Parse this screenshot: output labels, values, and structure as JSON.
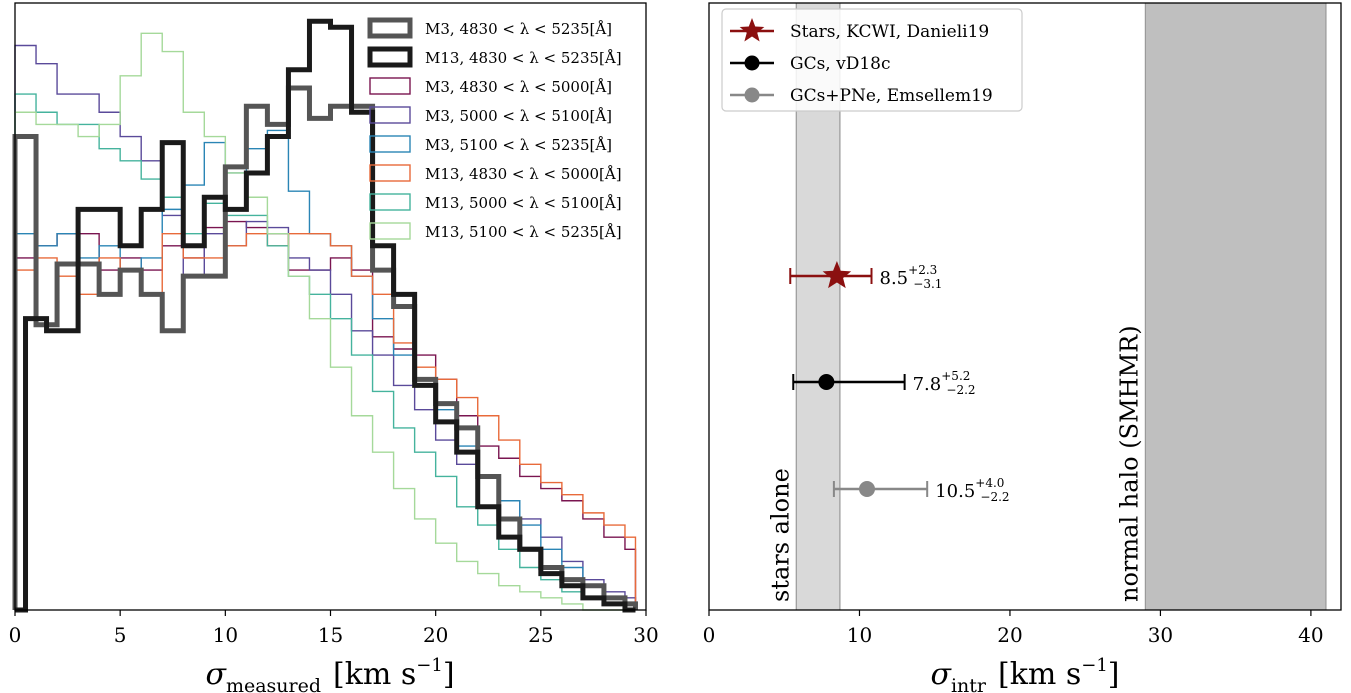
{
  "chart_data": [
    {
      "type": "histogram",
      "xlabel_main": "σ",
      "xlabel_sub": "measured",
      "xlabel_units": "[km s",
      "xlabel_exp": "−1",
      "xlabel_close": "]",
      "xlim": [
        0,
        30
      ],
      "xticks": [
        "0",
        "5",
        "10",
        "15",
        "20",
        "25",
        "30"
      ],
      "ylim": [
        0,
        1
      ],
      "yticks_visible": false,
      "legend_position": "top-right",
      "bin_width": 0.5,
      "x_start": 0,
      "series": [
        {
          "name": "M3, 4830 < λ < 5235[Å]",
          "color": "#555555",
          "weight": "thick",
          "values": [
            0.78,
            0.78,
            0.47,
            0.47,
            0.57,
            0.57,
            0.57,
            0.57,
            0.52,
            0.52,
            0.56,
            0.56,
            0.52,
            0.52,
            0.46,
            0.46,
            0.55,
            0.55,
            0.55,
            0.55,
            0.73,
            0.73,
            0.83,
            0.83,
            0.8,
            0.8,
            0.86,
            0.86,
            0.81,
            0.81,
            0.83,
            0.83,
            0.83,
            0.83,
            0.56,
            0.56,
            0.5,
            0.5,
            0.38,
            0.38,
            0.34,
            0.34,
            0.3,
            0.3,
            0.22,
            0.22,
            0.15,
            0.15,
            0.1,
            0.1,
            0.07,
            0.07,
            0.05,
            0.05,
            0.04,
            0.04,
            0.02,
            0.02,
            0.01
          ]
        },
        {
          "name": "M13, 4830 < λ < 5235[Å]",
          "color": "#1a1a1a",
          "weight": "thick",
          "values": [
            0.0,
            0.48,
            0.48,
            0.46,
            0.46,
            0.46,
            0.66,
            0.66,
            0.66,
            0.66,
            0.6,
            0.6,
            0.66,
            0.66,
            0.77,
            0.77,
            0.6,
            0.6,
            0.68,
            0.68,
            0.66,
            0.66,
            0.72,
            0.72,
            0.78,
            0.78,
            0.89,
            0.89,
            0.97,
            0.97,
            0.96,
            0.96,
            0.82,
            0.82,
            0.6,
            0.6,
            0.52,
            0.52,
            0.37,
            0.37,
            0.31,
            0.31,
            0.26,
            0.26,
            0.17,
            0.17,
            0.12,
            0.12,
            0.1,
            0.1,
            0.06,
            0.06,
            0.04,
            0.04,
            0.02,
            0.02,
            0.01,
            0.01,
            0.0
          ]
        },
        {
          "name": "M3, 4830 < λ < 5000[Å]",
          "color": "#7a1550",
          "weight": "thin",
          "values": [
            0.58,
            0.58,
            0.6,
            0.6,
            0.62,
            0.62,
            0.62,
            0.62,
            0.56,
            0.56,
            0.58,
            0.58,
            0.56,
            0.56,
            0.6,
            0.6,
            0.58,
            0.58,
            0.63,
            0.63,
            0.64,
            0.64,
            0.63,
            0.63,
            0.62,
            0.62,
            0.56,
            0.56,
            0.56,
            0.56,
            0.58,
            0.58,
            0.56,
            0.56,
            0.45,
            0.45,
            0.43,
            0.43,
            0.42,
            0.42,
            0.38,
            0.38,
            0.32,
            0.32,
            0.27,
            0.27,
            0.25,
            0.25,
            0.22,
            0.22,
            0.2,
            0.2,
            0.18,
            0.18,
            0.15,
            0.15,
            0.12,
            0.12,
            0.1
          ]
        },
        {
          "name": "M3, 5000 < λ < 5100[Å]",
          "color": "#5a4a9a",
          "weight": "thin",
          "values": [
            0.93,
            0.93,
            0.9,
            0.9,
            0.85,
            0.85,
            0.85,
            0.85,
            0.82,
            0.82,
            0.78,
            0.78,
            0.74,
            0.74,
            0.65,
            0.65,
            0.55,
            0.55,
            0.62,
            0.62,
            0.6,
            0.6,
            0.64,
            0.64,
            0.63,
            0.63,
            0.58,
            0.58,
            0.56,
            0.56,
            0.52,
            0.52,
            0.46,
            0.46,
            0.42,
            0.42,
            0.37,
            0.37,
            0.33,
            0.33,
            0.28,
            0.28,
            0.24,
            0.24,
            0.22,
            0.22,
            0.18,
            0.18,
            0.15,
            0.15,
            0.12,
            0.12,
            0.08,
            0.08,
            0.05,
            0.05,
            0.03,
            0.03,
            0.02
          ]
        },
        {
          "name": "M3, 5100 < λ < 5235[Å]",
          "color": "#2a85b5",
          "weight": "thin",
          "values": [
            0.62,
            0.62,
            0.6,
            0.6,
            0.62,
            0.62,
            0.58,
            0.58,
            0.6,
            0.6,
            0.56,
            0.56,
            0.58,
            0.58,
            0.66,
            0.66,
            0.7,
            0.7,
            0.77,
            0.77,
            0.72,
            0.72,
            0.76,
            0.76,
            0.79,
            0.79,
            0.69,
            0.69,
            0.62,
            0.62,
            0.6,
            0.6,
            0.55,
            0.55,
            0.48,
            0.48,
            0.42,
            0.42,
            0.37,
            0.37,
            0.33,
            0.33,
            0.27,
            0.27,
            0.22,
            0.22,
            0.18,
            0.18,
            0.14,
            0.14,
            0.1,
            0.1,
            0.07,
            0.07,
            0.04,
            0.04,
            0.02,
            0.02,
            0.01
          ]
        },
        {
          "name": "M13, 4830 < λ < 5000[Å]",
          "color": "#e86a3a",
          "weight": "thin",
          "values": [
            0.56,
            0.56,
            0.58,
            0.58,
            0.55,
            0.55,
            0.52,
            0.52,
            0.58,
            0.58,
            0.56,
            0.56,
            0.52,
            0.52,
            0.62,
            0.62,
            0.58,
            0.58,
            0.58,
            0.58,
            0.6,
            0.6,
            0.62,
            0.62,
            0.6,
            0.6,
            0.62,
            0.62,
            0.62,
            0.62,
            0.6,
            0.6,
            0.55,
            0.55,
            0.52,
            0.52,
            0.44,
            0.44,
            0.4,
            0.4,
            0.38,
            0.38,
            0.35,
            0.35,
            0.32,
            0.32,
            0.28,
            0.28,
            0.24,
            0.24,
            0.21,
            0.21,
            0.19,
            0.19,
            0.16,
            0.16,
            0.14,
            0.14,
            0.12
          ]
        },
        {
          "name": "M13, 5000 < λ < 5100[Å]",
          "color": "#45b39d",
          "weight": "thin",
          "values": [
            0.85,
            0.85,
            0.82,
            0.82,
            0.8,
            0.8,
            0.8,
            0.8,
            0.76,
            0.76,
            0.74,
            0.74,
            0.71,
            0.71,
            0.68,
            0.68,
            0.62,
            0.62,
            0.67,
            0.67,
            0.65,
            0.65,
            0.65,
            0.65,
            0.6,
            0.6,
            0.55,
            0.55,
            0.52,
            0.52,
            0.48,
            0.48,
            0.42,
            0.42,
            0.36,
            0.36,
            0.3,
            0.3,
            0.26,
            0.26,
            0.22,
            0.22,
            0.17,
            0.17,
            0.14,
            0.14,
            0.1,
            0.1,
            0.07,
            0.07,
            0.05,
            0.05,
            0.03,
            0.03,
            0.02,
            0.02,
            0.01,
            0.01,
            0.0
          ]
        },
        {
          "name": "M13, 5100 < λ < 5235[Å]",
          "color": "#a5d99a",
          "weight": "thin",
          "values": [
            0.82,
            0.82,
            0.8,
            0.8,
            0.8,
            0.8,
            0.78,
            0.78,
            0.8,
            0.8,
            0.88,
            0.88,
            0.95,
            0.95,
            0.92,
            0.92,
            0.82,
            0.82,
            0.78,
            0.78,
            0.72,
            0.72,
            0.68,
            0.68,
            0.62,
            0.62,
            0.55,
            0.55,
            0.48,
            0.48,
            0.4,
            0.4,
            0.32,
            0.32,
            0.26,
            0.26,
            0.2,
            0.2,
            0.15,
            0.15,
            0.11,
            0.11,
            0.08,
            0.08,
            0.06,
            0.06,
            0.04,
            0.04,
            0.03,
            0.03,
            0.02,
            0.02,
            0.01,
            0.01,
            0.0,
            0.0,
            0.0,
            0.0,
            0.0
          ]
        }
      ]
    },
    {
      "type": "errorbar",
      "xlabel_main": "σ",
      "xlabel_sub": "intr",
      "xlabel_units": "[km s",
      "xlabel_exp": "−1",
      "xlabel_close": "]",
      "xlim": [
        0,
        42
      ],
      "xticks": [
        "0",
        "10",
        "20",
        "30",
        "40"
      ],
      "yticks_visible": false,
      "legend_position": "top-left",
      "bands": [
        {
          "label": "stars alone",
          "x0": 5.8,
          "x1": 8.7,
          "color": "#d9d9d9"
        },
        {
          "label": "normal halo (SMHMR)",
          "x0": 29,
          "x1": 41,
          "color": "#bfbfbf"
        }
      ],
      "series": [
        {
          "name": "Stars, KCWI, Danieli19",
          "color": "#8b1010",
          "marker": "star",
          "x": 8.5,
          "err_plus": 2.3,
          "err_minus": 3.1,
          "value": "8.5",
          "plus": "+2.3",
          "minus": "−3.1",
          "row": 1
        },
        {
          "name": "GCs, vD18c",
          "color": "#000000",
          "marker": "circle",
          "x": 7.8,
          "err_plus": 5.2,
          "err_minus": 2.2,
          "value": "7.8",
          "plus": "+5.2",
          "minus": "−2.2",
          "row": 2
        },
        {
          "name": "GCs+PNe, Emsellem19",
          "color": "#888888",
          "marker": "circle",
          "x": 10.5,
          "err_plus": 4.0,
          "err_minus": 2.2,
          "value": "10.5",
          "plus": "+4.0",
          "minus": "−2.2",
          "row": 3
        }
      ]
    }
  ]
}
